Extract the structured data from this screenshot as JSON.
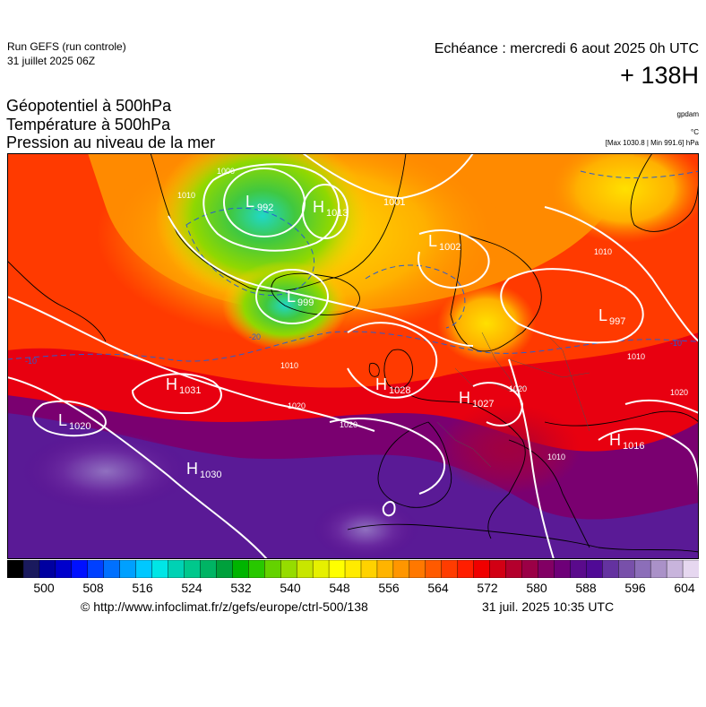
{
  "header": {
    "run_title": "Run GEFS (run controle)",
    "run_date": "31 juillet 2025 06Z",
    "valid_time": "Echéance : mercredi 6 aout 2025 0h UTC",
    "lead_time": "+ 138H"
  },
  "parameters": {
    "line1": "Géopotentiel à 500hPa",
    "line2": "Température à 500hPa",
    "line3": "Pression au niveau de la mer"
  },
  "units": {
    "geopotential": "gpdam",
    "temperature": "°C",
    "pressure_extremes": "[Max 1030.8 | Min 991.6] hPa"
  },
  "map": {
    "pressure_centers": [
      {
        "type": "L",
        "value": "992"
      },
      {
        "type": "H",
        "value": "1013"
      },
      {
        "type": "L",
        "value": "1001"
      },
      {
        "type": "L",
        "value": "1002"
      },
      {
        "type": "L",
        "value": "999"
      },
      {
        "type": "L",
        "value": "997"
      },
      {
        "type": "H",
        "value": "1031"
      },
      {
        "type": "H",
        "value": "1028"
      },
      {
        "type": "H",
        "value": "1027"
      },
      {
        "type": "L",
        "value": "1020"
      },
      {
        "type": "H",
        "value": "1030"
      },
      {
        "type": "H",
        "value": "1016"
      }
    ],
    "isobar_labels": [
      "1000",
      "1010",
      "1010",
      "1020",
      "1020",
      "1020",
      "1010",
      "1010",
      "1020",
      "1010"
    ],
    "isotherm_labels": [
      "-10",
      "-20",
      "-10"
    ]
  },
  "colorbar": {
    "ticks": [
      "500",
      "508",
      "516",
      "524",
      "532",
      "540",
      "548",
      "556",
      "564",
      "572",
      "580",
      "588",
      "596",
      "604"
    ],
    "colors": [
      "#000000",
      "#1a1a5e",
      "#0000a0",
      "#0000cc",
      "#0010ff",
      "#0040ff",
      "#0070ff",
      "#00a0ff",
      "#00c8ff",
      "#00e6e6",
      "#00d2b4",
      "#00c88c",
      "#00b464",
      "#00a03c",
      "#00b400",
      "#28c800",
      "#64d200",
      "#96dc00",
      "#c8e600",
      "#e6f000",
      "#ffff00",
      "#ffeb00",
      "#ffd200",
      "#ffb400",
      "#ff9600",
      "#ff7800",
      "#ff5a00",
      "#ff3c00",
      "#ff1e00",
      "#f00000",
      "#d20014",
      "#b4002d",
      "#9b0046",
      "#820064",
      "#6e0078",
      "#5a0a8c",
      "#500a96",
      "#6432a0",
      "#7850aa",
      "#8c6eb9",
      "#aa91c8",
      "#c8b4dc",
      "#e6d7f0"
    ]
  },
  "footer": {
    "copyright": "© http://www.infoclimat.fr/z/gefs/europe/ctrl-500/138",
    "generated": "31 juil. 2025 10:35 UTC"
  }
}
